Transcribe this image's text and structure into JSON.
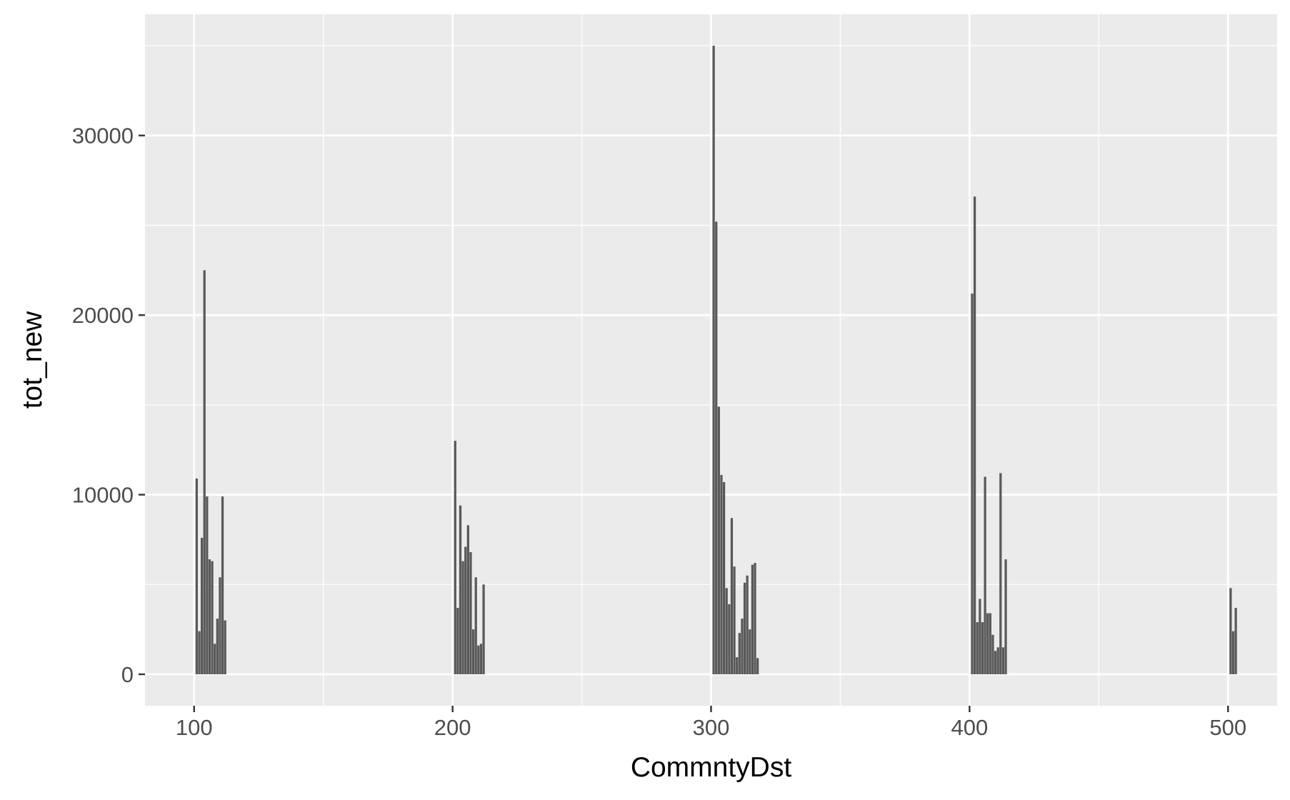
{
  "chart_data": {
    "type": "bar",
    "title": "",
    "xlabel": "CommntyDst",
    "ylabel": "tot_new",
    "xlim": [
      81,
      519
    ],
    "ylim": [
      -1750,
      36750
    ],
    "x_ticks": [
      100,
      200,
      300,
      400,
      500
    ],
    "x_tick_labels": [
      "100",
      "200",
      "300",
      "400",
      "500"
    ],
    "x_minor_ticks": [
      150,
      250,
      350,
      450
    ],
    "y_ticks": [
      0,
      10000,
      20000,
      30000
    ],
    "y_tick_labels": [
      "0",
      "10000",
      "20000",
      "30000"
    ],
    "y_minor_ticks": [
      5000,
      15000,
      25000,
      35000
    ],
    "grid": true,
    "legend": "none",
    "bar_width": 0.9,
    "bar_color": "#595959",
    "panel_background": "#ebebeb",
    "series": [
      {
        "x": [
          101,
          102,
          103,
          104,
          105,
          106,
          107,
          108,
          109,
          110,
          111,
          112,
          201,
          202,
          203,
          204,
          205,
          206,
          207,
          208,
          209,
          210,
          211,
          212,
          301,
          302,
          303,
          304,
          305,
          306,
          307,
          308,
          309,
          310,
          311,
          312,
          313,
          314,
          315,
          316,
          317,
          318,
          401,
          402,
          403,
          404,
          405,
          406,
          407,
          408,
          409,
          410,
          411,
          412,
          413,
          414,
          501,
          502,
          503
        ],
        "values": [
          10900,
          2400,
          7600,
          22500,
          9900,
          6400,
          6300,
          1700,
          3100,
          5400,
          9900,
          3000,
          13000,
          3700,
          9400,
          6300,
          7100,
          8300,
          6800,
          2500,
          5400,
          1600,
          1700,
          5000,
          35000,
          25200,
          14900,
          11100,
          10700,
          4800,
          3900,
          8700,
          6000,
          950,
          2300,
          3100,
          5100,
          5500,
          2500,
          6100,
          6200,
          900,
          21200,
          26600,
          2900,
          4200,
          2900,
          11000,
          3400,
          3400,
          2200,
          1300,
          1500,
          11200,
          1500,
          6400,
          4800,
          2400,
          3700
        ]
      }
    ]
  }
}
